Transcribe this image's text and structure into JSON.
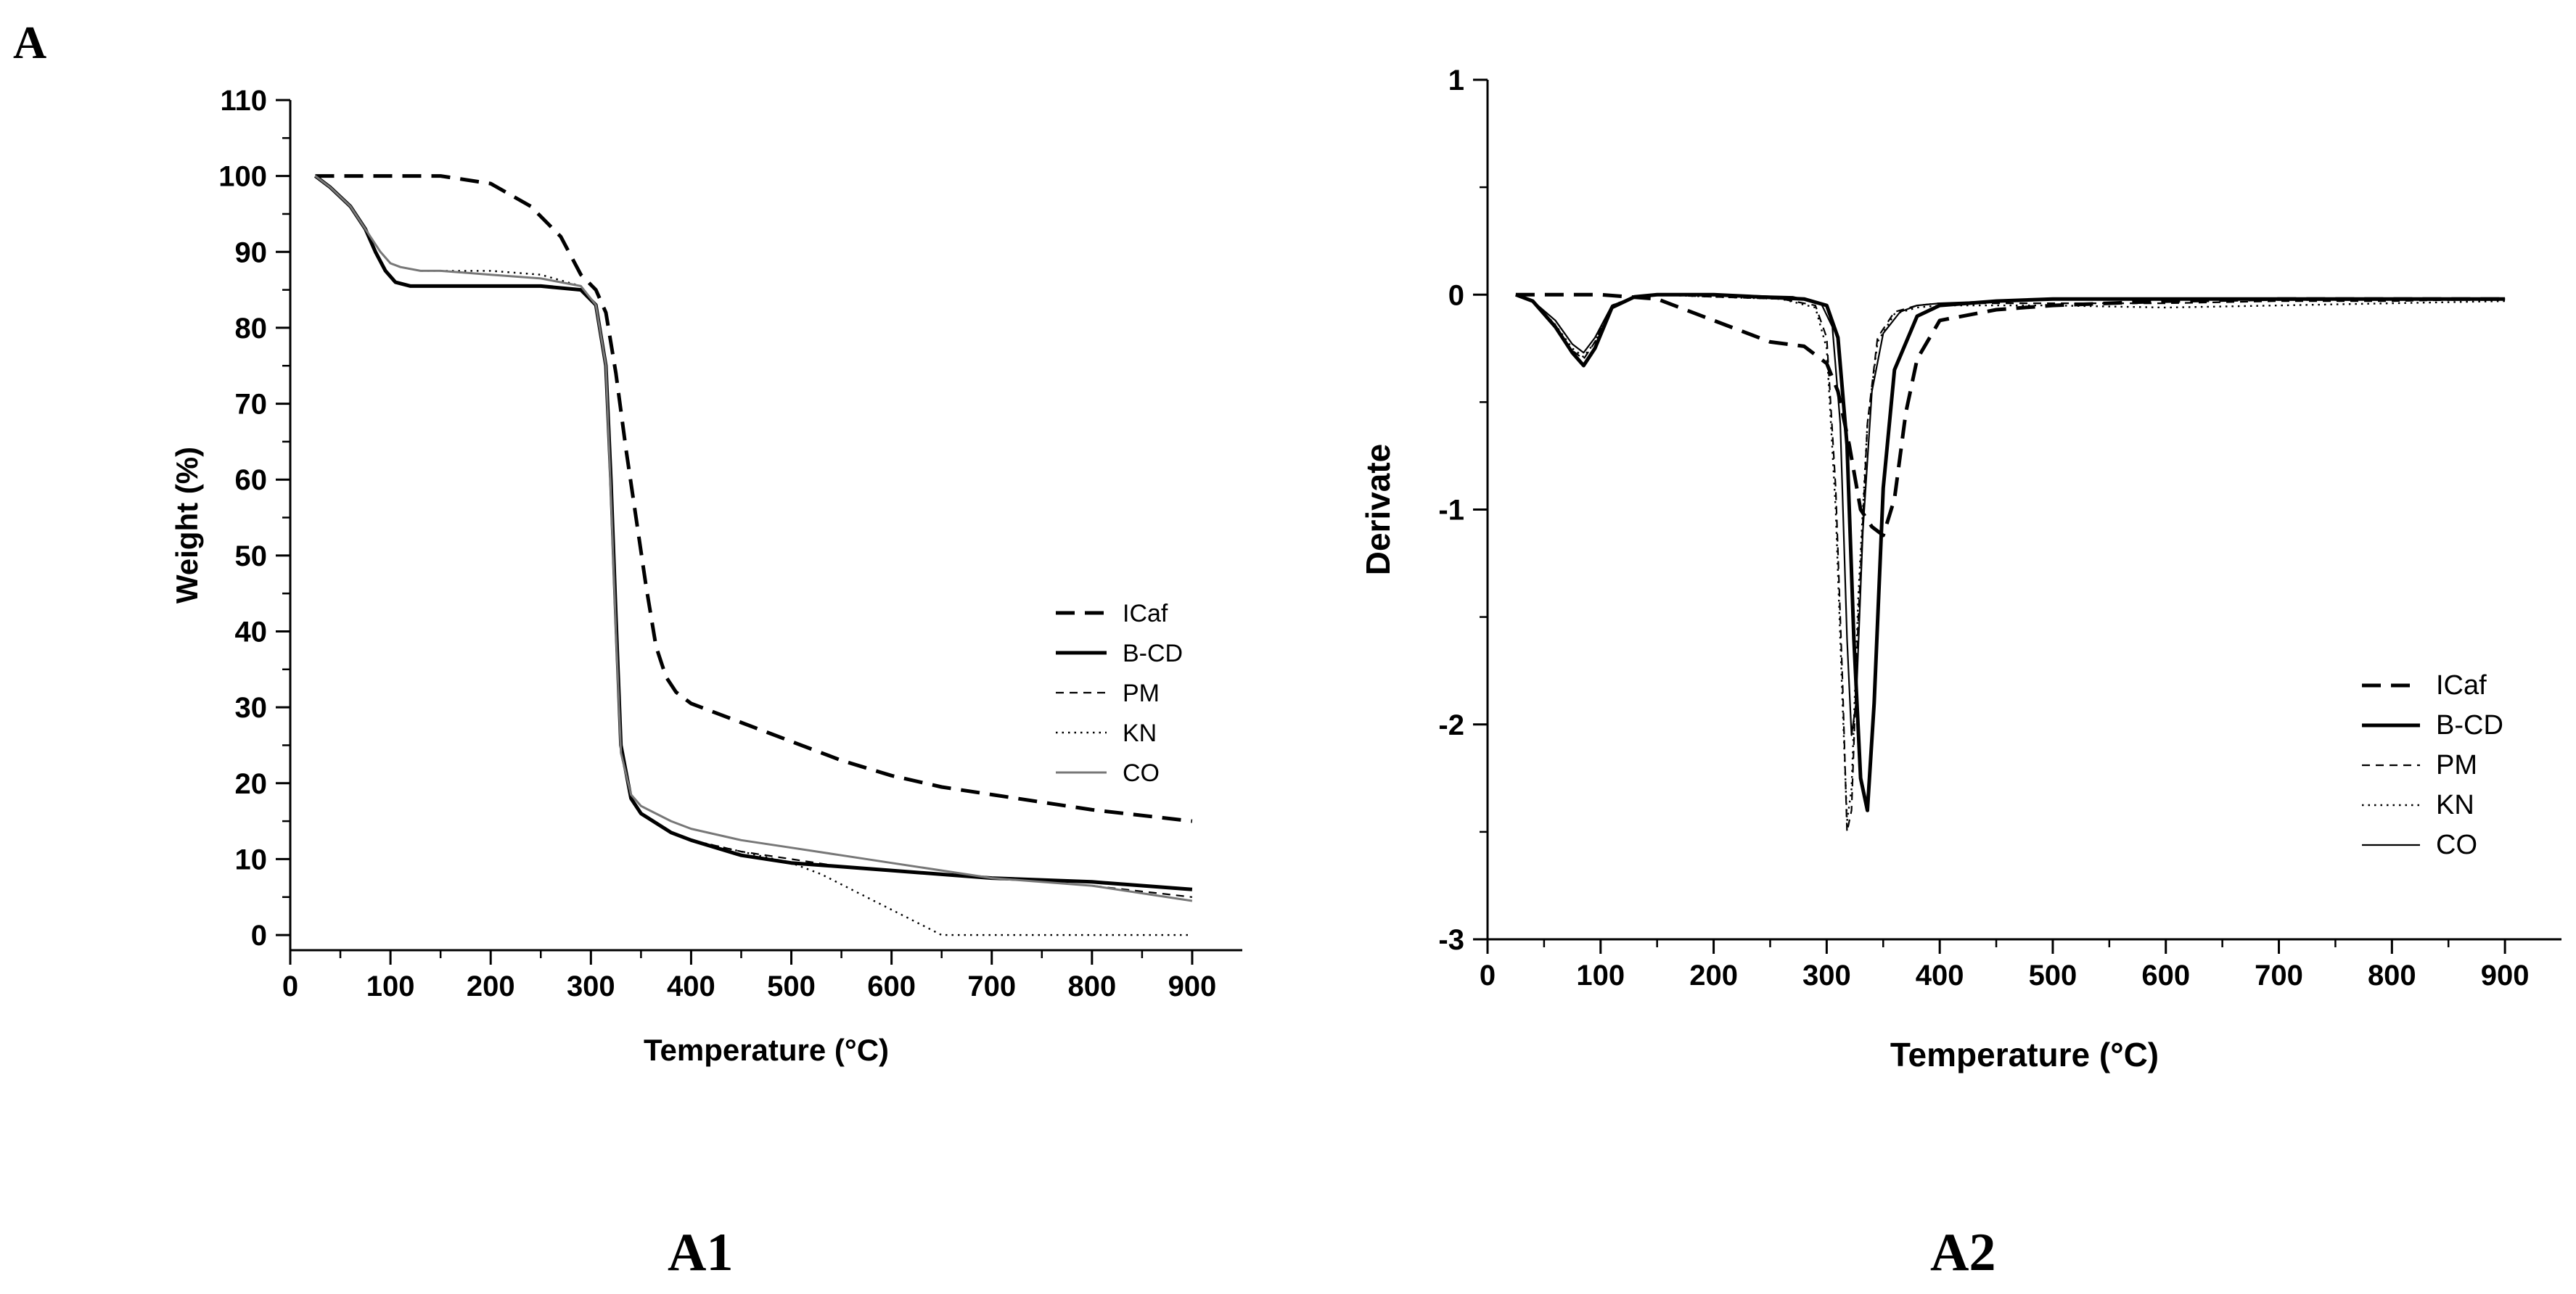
{
  "page_label": "A",
  "chart_data": [
    {
      "panel_label": "A1",
      "type": "line",
      "xlabel": "Temperature (°C)",
      "ylabel": "Weight (%)",
      "xlim": [
        0,
        950
      ],
      "ylim": [
        -2,
        110
      ],
      "xticks": [
        0,
        100,
        200,
        300,
        400,
        500,
        600,
        700,
        800,
        900
      ],
      "yticks": [
        0,
        10,
        20,
        30,
        40,
        50,
        60,
        70,
        80,
        90,
        100,
        110
      ],
      "legend_position": "right",
      "series": [
        {
          "name": "ICaf",
          "style": "dash-thick",
          "x": [
            25,
            50,
            100,
            150,
            200,
            240,
            270,
            290,
            305,
            315,
            325,
            335,
            345,
            355,
            365,
            375,
            385,
            400,
            450,
            500,
            550,
            600,
            650,
            700,
            800,
            900
          ],
          "y": [
            100,
            100,
            100,
            100,
            99,
            96,
            92,
            87,
            85,
            82,
            74,
            64,
            55,
            46,
            38,
            34,
            32,
            30.5,
            28,
            25.5,
            23,
            21,
            19.5,
            18.5,
            16.5,
            15
          ]
        },
        {
          "name": "B-CD",
          "style": "solid-thick",
          "x": [
            25,
            40,
            60,
            75,
            85,
            95,
            105,
            120,
            150,
            200,
            250,
            290,
            305,
            315,
            320,
            325,
            330,
            340,
            350,
            380,
            400,
            450,
            500,
            550,
            600,
            650,
            700,
            800,
            900
          ],
          "y": [
            100,
            98.5,
            96,
            93,
            90,
            87.5,
            86,
            85.5,
            85.5,
            85.5,
            85.5,
            85,
            83,
            75,
            60,
            42,
            25,
            18,
            16,
            13.5,
            12.5,
            10.5,
            9.5,
            9,
            8.5,
            8,
            7.5,
            7,
            6
          ]
        },
        {
          "name": "PM",
          "style": "dash-thin",
          "x": [
            25,
            40,
            60,
            75,
            90,
            100,
            110,
            130,
            150,
            200,
            250,
            290,
            305,
            315,
            320,
            325,
            330,
            340,
            350,
            380,
            400,
            450,
            500,
            550,
            600,
            650,
            700,
            800,
            900
          ],
          "y": [
            100,
            98.5,
            96,
            93,
            90,
            88.5,
            88,
            87.5,
            87.5,
            87,
            86.5,
            85.5,
            83,
            75,
            58,
            40,
            24,
            18,
            16,
            13.5,
            12.5,
            11,
            10,
            9,
            8.5,
            8,
            7.5,
            6.5,
            5
          ]
        },
        {
          "name": "KN",
          "style": "dot",
          "x": [
            25,
            40,
            60,
            75,
            90,
            100,
            110,
            130,
            150,
            200,
            250,
            290,
            305,
            315,
            320,
            325,
            330,
            340,
            350,
            380,
            400,
            450,
            500,
            530,
            560,
            590,
            620,
            650,
            700,
            800,
            900
          ],
          "y": [
            100,
            98.5,
            96,
            93,
            90,
            88.5,
            88,
            87.5,
            87.5,
            87.5,
            87,
            85.5,
            83,
            75,
            58,
            40,
            24,
            18,
            16,
            13.5,
            12.5,
            11,
            9.5,
            8,
            6,
            4,
            2,
            0,
            0,
            0,
            0
          ]
        },
        {
          "name": "CO",
          "style": "solid-thin-gray",
          "x": [
            25,
            40,
            60,
            75,
            90,
            100,
            110,
            130,
            150,
            200,
            250,
            290,
            305,
            315,
            320,
            325,
            330,
            340,
            350,
            380,
            400,
            450,
            500,
            550,
            600,
            650,
            700,
            800,
            900
          ],
          "y": [
            100,
            98.5,
            96,
            93,
            90,
            88.5,
            88,
            87.5,
            87.5,
            87,
            86.5,
            85.5,
            83,
            75,
            58,
            40,
            24,
            18.5,
            17,
            15,
            14,
            12.5,
            11.5,
            10.5,
            9.5,
            8.5,
            7.5,
            6.5,
            4.5
          ]
        }
      ]
    },
    {
      "panel_label": "A2",
      "type": "line",
      "xlabel": "Temperature (°C)",
      "ylabel": "Derivate",
      "xlim": [
        0,
        950
      ],
      "ylim": [
        -3,
        1
      ],
      "xticks": [
        0,
        100,
        200,
        300,
        400,
        500,
        600,
        700,
        800,
        900
      ],
      "yticks": [
        -3,
        -2,
        -1,
        0,
        1
      ],
      "legend_position": "lower-right",
      "series": [
        {
          "name": "ICaf",
          "style": "dash-thick",
          "x": [
            25,
            50,
            100,
            150,
            200,
            250,
            280,
            300,
            310,
            320,
            330,
            340,
            350,
            360,
            370,
            380,
            400,
            450,
            500,
            600,
            700,
            800,
            900
          ],
          "y": [
            0,
            0,
            0,
            -0.02,
            -0.12,
            -0.22,
            -0.24,
            -0.32,
            -0.45,
            -0.7,
            -1.0,
            -1.08,
            -1.12,
            -0.95,
            -0.55,
            -0.3,
            -0.12,
            -0.07,
            -0.05,
            -0.03,
            -0.02,
            -0.02,
            -0.02
          ]
        },
        {
          "name": "B-CD",
          "style": "solid-thick",
          "x": [
            25,
            40,
            60,
            75,
            85,
            95,
            110,
            130,
            150,
            200,
            280,
            300,
            310,
            318,
            324,
            330,
            336,
            342,
            350,
            360,
            380,
            400,
            450,
            500,
            900
          ],
          "y": [
            0,
            -0.03,
            -0.15,
            -0.27,
            -0.33,
            -0.25,
            -0.06,
            -0.01,
            0,
            0,
            -0.02,
            -0.05,
            -0.2,
            -0.7,
            -1.6,
            -2.25,
            -2.4,
            -1.9,
            -0.9,
            -0.35,
            -0.1,
            -0.05,
            -0.03,
            -0.02,
            -0.02
          ]
        },
        {
          "name": "PM",
          "style": "dash-thin",
          "x": [
            25,
            40,
            60,
            75,
            85,
            95,
            110,
            130,
            150,
            200,
            260,
            290,
            300,
            308,
            314,
            318,
            322,
            328,
            336,
            345,
            360,
            380,
            400,
            450,
            500,
            600,
            700,
            800,
            900
          ],
          "y": [
            0,
            -0.03,
            -0.15,
            -0.26,
            -0.3,
            -0.22,
            -0.05,
            -0.01,
            0,
            -0.01,
            -0.02,
            -0.05,
            -0.2,
            -0.9,
            -1.8,
            -2.5,
            -2.4,
            -1.5,
            -0.6,
            -0.2,
            -0.08,
            -0.05,
            -0.04,
            -0.04,
            -0.04,
            -0.04,
            -0.03,
            -0.03,
            -0.02
          ]
        },
        {
          "name": "KN",
          "style": "dot",
          "x": [
            25,
            40,
            60,
            75,
            85,
            95,
            110,
            130,
            150,
            200,
            260,
            290,
            300,
            308,
            314,
            318,
            322,
            328,
            336,
            345,
            360,
            380,
            400,
            450,
            500,
            600,
            700,
            800,
            900
          ],
          "y": [
            0,
            -0.03,
            -0.14,
            -0.25,
            -0.29,
            -0.22,
            -0.05,
            -0.01,
            0,
            -0.01,
            -0.02,
            -0.06,
            -0.25,
            -1.0,
            -1.9,
            -2.45,
            -2.3,
            -1.4,
            -0.6,
            -0.22,
            -0.09,
            -0.06,
            -0.05,
            -0.05,
            -0.05,
            -0.06,
            -0.05,
            -0.04,
            -0.03
          ]
        },
        {
          "name": "CO",
          "style": "solid-thin",
          "x": [
            25,
            40,
            60,
            75,
            85,
            95,
            110,
            130,
            150,
            200,
            270,
            295,
            305,
            312,
            318,
            322,
            326,
            332,
            340,
            350,
            365,
            380,
            400,
            450,
            500,
            900
          ],
          "y": [
            0,
            -0.03,
            -0.12,
            -0.23,
            -0.27,
            -0.2,
            -0.05,
            -0.01,
            0,
            0,
            -0.01,
            -0.04,
            -0.15,
            -0.6,
            -1.6,
            -2.05,
            -1.9,
            -1.1,
            -0.45,
            -0.18,
            -0.08,
            -0.05,
            -0.04,
            -0.03,
            -0.02,
            -0.02
          ]
        }
      ]
    }
  ]
}
